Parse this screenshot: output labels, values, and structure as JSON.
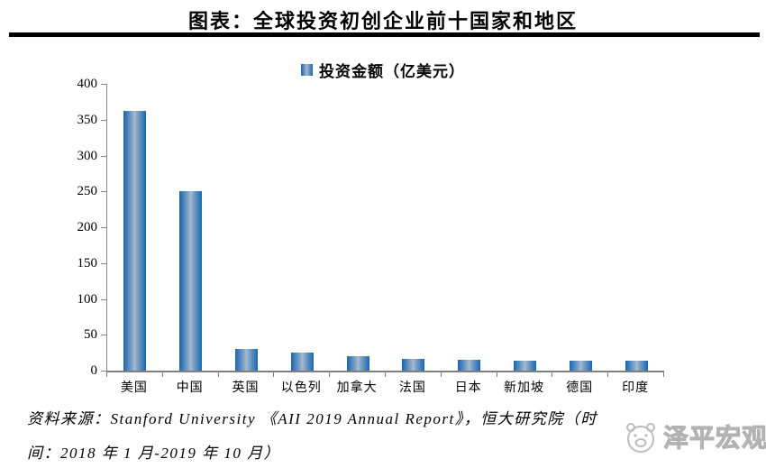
{
  "title": "图表：全球投资初创企业前十国家和地区",
  "legend": {
    "label": "投资金额（亿美元）",
    "marker_color": "#1865b3"
  },
  "chart_data": {
    "type": "bar",
    "title": "全球投资初创企业前十国家和地区",
    "categories": [
      "美国",
      "中国",
      "英国",
      "以色列",
      "加拿大",
      "法国",
      "日本",
      "新加坡",
      "德国",
      "印度"
    ],
    "values": [
      362,
      250,
      30,
      25,
      20,
      16,
      15,
      14,
      14,
      14
    ],
    "series_name": "投资金额（亿美元）",
    "xlabel": "",
    "ylabel": "",
    "ylim": [
      0,
      400
    ],
    "yticks": [
      0,
      50,
      100,
      150,
      200,
      250,
      300,
      350,
      400
    ],
    "grid": false,
    "legend_position": "top",
    "bar_edge_color": "#1865b3",
    "bar_center_color": "#aabdcf",
    "axis_color": "#7f7f7f"
  },
  "footer": {
    "source_line1": "资料来源：Stanford University 《AII 2019 Annual Report》，恒大研究院（时",
    "source_line2": "间：2018 年 1 月-2019 年 10 月）"
  },
  "watermark": {
    "label": "泽平宏观"
  }
}
